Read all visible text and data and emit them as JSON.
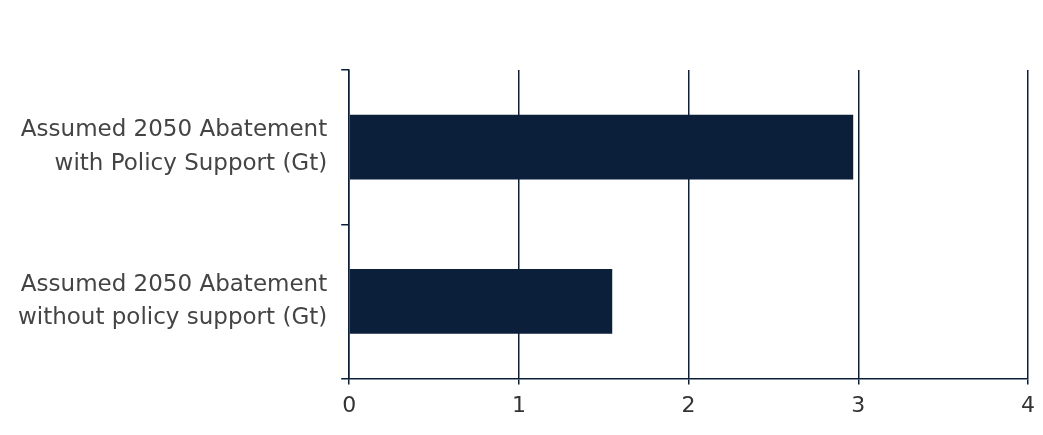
{
  "chart_data": {
    "type": "bar",
    "orientation": "horizontal",
    "categories": [
      "Assumed 2050 Abatement with Policy Support (Gt)",
      "Assumed 2050 Abatement without policy support (Gt)"
    ],
    "values": [
      2.97,
      1.55
    ],
    "color": "#0b1f3a",
    "xlim": [
      0,
      4
    ],
    "xticks": [
      0,
      1,
      2,
      3,
      4
    ],
    "grid": "x",
    "legend": false
  }
}
